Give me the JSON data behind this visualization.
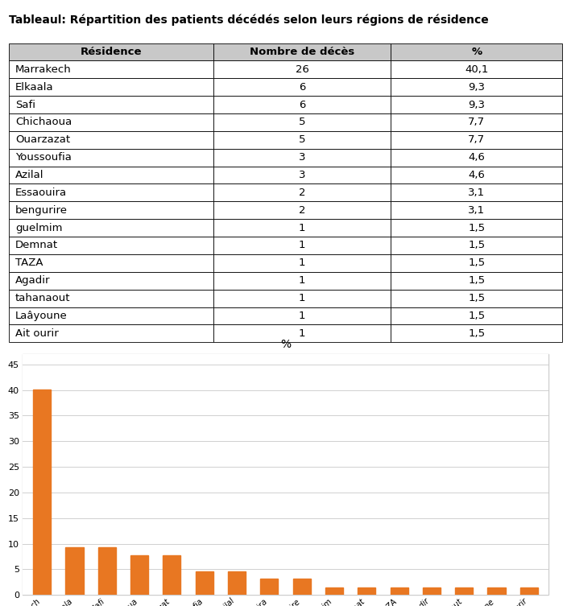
{
  "title": "Tableaul: Répartition des patients décédés selon leurs régions de résidence",
  "table_headers": [
    "Résidence",
    "Nombre de décès",
    "%"
  ],
  "table_rows": [
    [
      "Marrakech",
      "26",
      "40,1"
    ],
    [
      "Elkaala",
      "6",
      "9,3"
    ],
    [
      "Safi",
      "6",
      "9,3"
    ],
    [
      "Chichaoua",
      "5",
      "7,7"
    ],
    [
      "Ouarzazat",
      "5",
      "7,7"
    ],
    [
      "Youssoufia",
      "3",
      "4,6"
    ],
    [
      "Azilal",
      "3",
      "4,6"
    ],
    [
      "Essaouira",
      "2",
      "3,1"
    ],
    [
      "bengurire",
      "2",
      "3,1"
    ],
    [
      "guelmim",
      "1",
      "1,5"
    ],
    [
      "Demnat",
      "1",
      "1,5"
    ],
    [
      "TAZA",
      "1",
      "1,5"
    ],
    [
      "Agadir",
      "1",
      "1,5"
    ],
    [
      "tahanaout",
      "1",
      "1,5"
    ],
    [
      "Laâyoune",
      "1",
      "1,5"
    ],
    [
      "Ait ourir",
      "1",
      "1,5"
    ]
  ],
  "categories": [
    "Marrakech",
    "Elkaala",
    "Safi",
    "Chichaoua",
    "Ouarzazat",
    "Youssoufia",
    "Azilal",
    "Essaouira",
    "bengurire",
    "guelmim",
    "Demnat",
    "TAZA",
    "Agadir",
    "tahanaout",
    "Laâyoune",
    "Ait ourir"
  ],
  "values": [
    40.1,
    9.3,
    9.3,
    7.7,
    7.7,
    4.6,
    4.6,
    3.1,
    3.1,
    1.5,
    1.5,
    1.5,
    1.5,
    1.5,
    1.5,
    1.5
  ],
  "bar_color": "#E87722",
  "chart_title": "%",
  "legend_label": "%",
  "ylim": [
    0,
    47
  ],
  "yticks": [
    0,
    5,
    10,
    15,
    20,
    25,
    30,
    35,
    40,
    45
  ],
  "bg_color": "#FFFFFF",
  "chart_bg": "#FFFFFF",
  "grid_color": "#D0D0D0",
  "header_bg": "#C8C8C8",
  "title_underline": true,
  "table_font_size": 9.5,
  "title_font_size": 10,
  "chart_border_color": "#CCCCCC"
}
